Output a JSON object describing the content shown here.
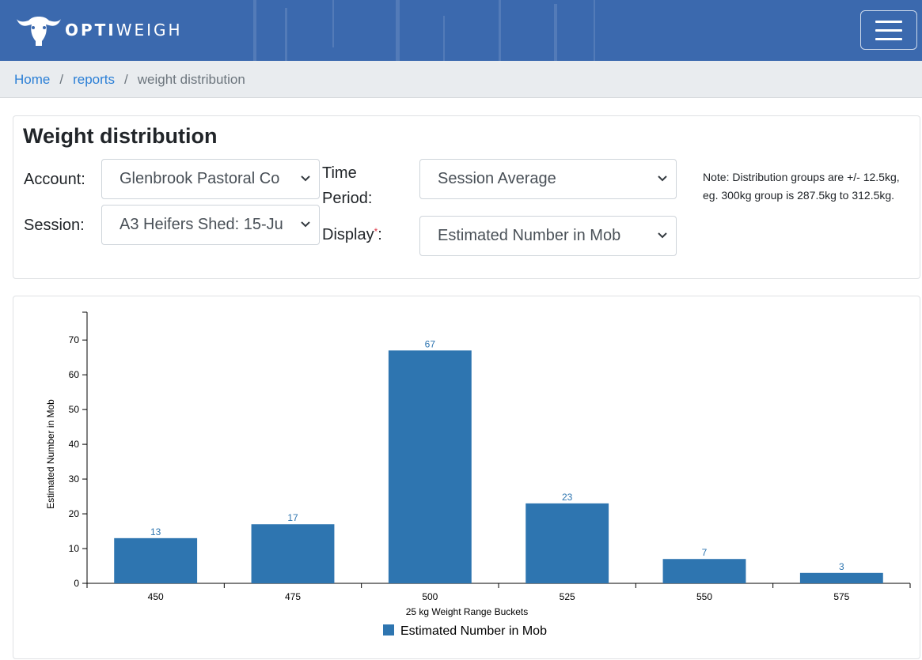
{
  "brand": {
    "name_bold": "OPTI",
    "name_light": "WEIGH",
    "logo_icon": "bull-head-icon"
  },
  "nav": {
    "menu_icon": "hamburger-menu-icon"
  },
  "breadcrumb": {
    "home": "Home",
    "reports": "reports",
    "current": "weight distribution",
    "separator": "/"
  },
  "page": {
    "title": "Weight distribution"
  },
  "filters": {
    "account_label": "Account:",
    "account_value": "Glenbrook Pastoral Co",
    "session_label": "Session:",
    "session_value": "A3 Heifers Shed: 15-Ju",
    "time_label_line1": "Time",
    "time_label_line2": "Period:",
    "time_value": "Session Average",
    "display_label": "Display",
    "display_required_mark": "*",
    "display_colon": ":",
    "display_value": "Estimated Number in Mob",
    "note": "Note: Distribution groups are +/- 12.5kg, eg. 300kg group is 287.5kg to 312.5kg."
  },
  "colors": {
    "navbar": "#3b69ae",
    "bar": "#2e75b0",
    "link": "#2b7fd6",
    "required": "#dc3545"
  },
  "chart_data": {
    "type": "bar",
    "categories": [
      "450",
      "475",
      "500",
      "525",
      "550",
      "575"
    ],
    "series": [
      {
        "name": "Estimated Number in Mob",
        "values": [
          13,
          17,
          67,
          23,
          7,
          3
        ]
      }
    ],
    "xlabel": "25 kg Weight Range Buckets",
    "ylabel": "Estimated Number in Mob",
    "ylim": [
      0,
      78
    ],
    "yticks": [
      0,
      10,
      20,
      30,
      40,
      50,
      60,
      70
    ],
    "legend": "bottom-center",
    "data_labels": true,
    "grid": false
  }
}
